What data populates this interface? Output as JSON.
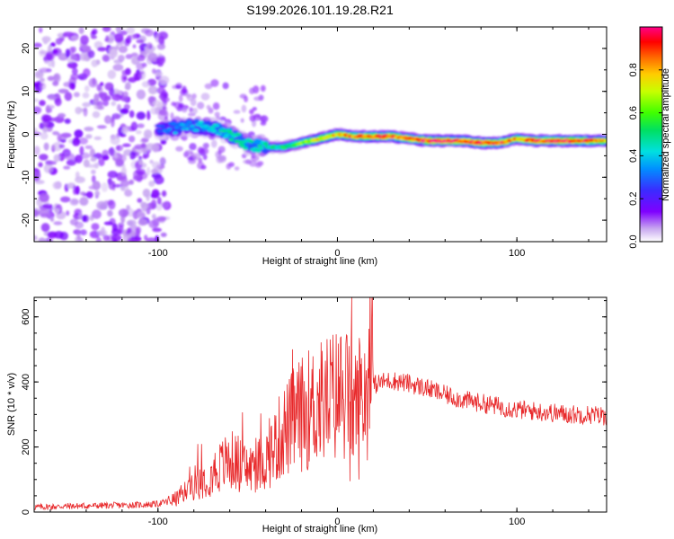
{
  "chart_data": [
    {
      "type": "heatmap",
      "title": "S199.2026.101.19.28.R21",
      "xlabel": "Height of straight line (km)",
      "ylabel": "Frequency (Hz)",
      "xlim": [
        -169,
        150
      ],
      "ylim": [
        -25,
        25
      ],
      "xticks": [
        -100,
        0,
        100
      ],
      "yticks": [
        -20,
        -10,
        0,
        10,
        20
      ],
      "xtick_labels": [
        "-100",
        "0",
        "100"
      ],
      "ytick_labels": [
        "-20",
        "-10",
        "0",
        "10",
        "20"
      ],
      "colorbar": {
        "label": "Normalized spectral amplitude",
        "range": [
          0,
          1
        ],
        "ticks": [
          "0.0",
          "0.2",
          "0.4",
          "0.6",
          "0.8"
        ]
      },
      "ridge": {
        "x": [
          -100,
          -90,
          -80,
          -70,
          -60,
          -50,
          -40,
          -30,
          -20,
          -10,
          0,
          10,
          20,
          30,
          40,
          50,
          60,
          70,
          80,
          90,
          100,
          110,
          120,
          130,
          140,
          150
        ],
        "frequency": [
          1.0,
          1.5,
          2.0,
          1.5,
          0,
          -2.5,
          -3.0,
          -3.0,
          -2.0,
          -1.0,
          0,
          -0.5,
          -0.5,
          -0.5,
          -1.0,
          -1.5,
          -1.5,
          -1.5,
          -2.0,
          -2.0,
          -1.0,
          -1.5,
          -1.5,
          -1.5,
          -1.5,
          -1.5
        ],
        "amplitude": [
          0.25,
          0.35,
          0.35,
          0.4,
          0.45,
          0.45,
          0.45,
          0.5,
          0.6,
          0.75,
          0.8,
          0.85,
          0.9,
          0.9,
          0.85,
          0.95,
          0.95,
          0.9,
          0.95,
          0.9,
          0.8,
          0.9,
          0.95,
          0.95,
          0.9,
          0.8
        ]
      },
      "noise_region_x": [
        -169,
        -95
      ]
    },
    {
      "type": "line",
      "title": "",
      "xlabel": "Height of straight line (km)",
      "ylabel": "SNR (10 * v/v)",
      "xlim": [
        -169,
        150
      ],
      "ylim": [
        0,
        660
      ],
      "xticks": [
        -100,
        0,
        100
      ],
      "yticks": [
        0,
        200,
        400,
        600
      ],
      "xtick_labels": [
        "-100",
        "0",
        "100"
      ],
      "ytick_labels": [
        "0",
        "200",
        "400",
        "600"
      ],
      "series": [
        {
          "name": "SNR",
          "color": "#e8282a",
          "x": [
            -169,
            -150,
            -130,
            -110,
            -100,
            -90,
            -85,
            -80,
            -75,
            -70,
            -65,
            -60,
            -55,
            -50,
            -45,
            -40,
            -35,
            -30,
            -27,
            -25,
            -20,
            -15,
            -10,
            -5,
            0,
            5,
            8,
            10,
            12,
            15,
            20,
            25,
            30,
            35,
            40,
            50,
            60,
            70,
            80,
            90,
            100,
            110,
            120,
            130,
            140,
            150
          ],
          "y": [
            15,
            18,
            20,
            22,
            25,
            40,
            60,
            90,
            100,
            120,
            140,
            160,
            150,
            130,
            140,
            160,
            200,
            250,
            260,
            280,
            300,
            320,
            330,
            350,
            360,
            360,
            330,
            320,
            350,
            370,
            390,
            400,
            405,
            400,
            395,
            380,
            360,
            345,
            335,
            325,
            315,
            310,
            305,
            300,
            300,
            295
          ],
          "peaks": [
            {
              "x": -25,
              "y": 500
            },
            {
              "x": 8,
              "y": 660
            },
            {
              "x": 13,
              "y": 455
            }
          ],
          "dips": [
            {
              "x": 7,
              "y": 95
            },
            {
              "x": 12,
              "y": 100
            }
          ]
        }
      ]
    }
  ]
}
